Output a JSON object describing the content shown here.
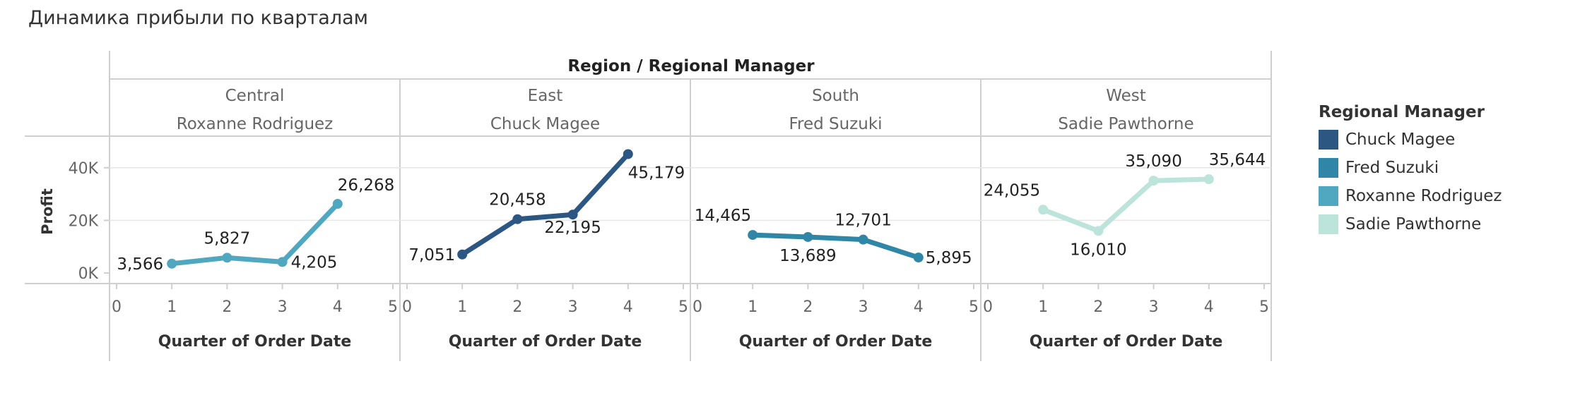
{
  "page": {
    "title": "Динамика прибыли по кварталам"
  },
  "chart_data": {
    "type": "line",
    "title": "Динамика прибыли по кварталам",
    "header": "Region / Regional Manager",
    "ylabel": "Profit",
    "xlabel": "Quarter of Order Date",
    "ylim": [
      -4000,
      52000
    ],
    "xlim": [
      0,
      5
    ],
    "y_ticks": [
      0,
      20000,
      40000
    ],
    "y_tick_labels": [
      "0K",
      "20K",
      "40K"
    ],
    "x_ticks": [
      0,
      1,
      2,
      3,
      4,
      5
    ],
    "x_tick_labels": [
      "0",
      "1",
      "2",
      "3",
      "4",
      "5"
    ],
    "legend": {
      "title": "Regional Manager",
      "placement": "right",
      "items": [
        {
          "name": "Chuck Magee",
          "color": "#2c5782"
        },
        {
          "name": "Fred Suzuki",
          "color": "#2f86a6"
        },
        {
          "name": "Roxanne Rodriguez",
          "color": "#4fa7c0"
        },
        {
          "name": "Sadie Pawthorne",
          "color": "#bde4da"
        }
      ]
    },
    "panels": [
      {
        "region": "Central",
        "manager": "Roxanne Rodriguez",
        "color": "#4fa7c0",
        "x": [
          1,
          2,
          3,
          4
        ],
        "y": [
          3566,
          5827,
          4205,
          26268
        ],
        "labels": [
          "3,566",
          "5,827",
          "4,205",
          "26,268"
        ]
      },
      {
        "region": "East",
        "manager": "Chuck Magee",
        "color": "#2c5782",
        "x": [
          1,
          2,
          3,
          4
        ],
        "y": [
          7051,
          20458,
          22195,
          45179
        ],
        "labels": [
          "7,051",
          "20,458",
          "22,195",
          "45,179"
        ]
      },
      {
        "region": "South",
        "manager": "Fred Suzuki",
        "color": "#2f86a6",
        "x": [
          1,
          2,
          3,
          4
        ],
        "y": [
          14465,
          13689,
          12701,
          5895
        ],
        "labels": [
          "14,465",
          "13,689",
          "12,701",
          "5,895"
        ]
      },
      {
        "region": "West",
        "manager": "Sadie Pawthorne",
        "color": "#bde4da",
        "x": [
          1,
          2,
          3,
          4
        ],
        "y": [
          24055,
          16010,
          35090,
          35644
        ],
        "labels": [
          "24,055",
          "16,010",
          "35,090",
          "35,644"
        ]
      }
    ]
  }
}
